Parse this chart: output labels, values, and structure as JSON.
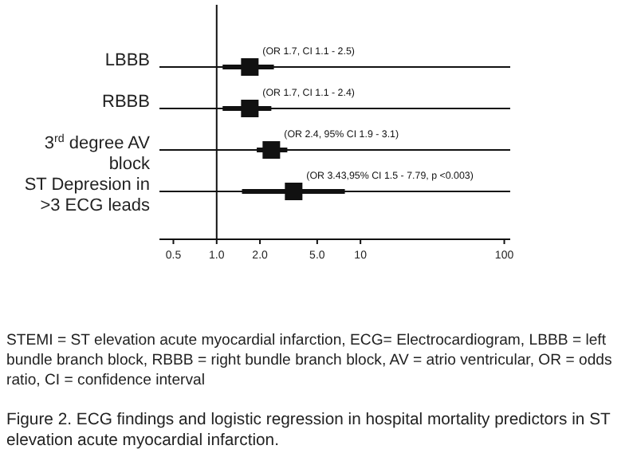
{
  "chart_data": {
    "type": "scatter",
    "orientation": "horizontal",
    "marker": "square",
    "grid": "y",
    "categories": [
      "LBBB",
      "RBBB",
      "3$^{rd}$ degree AV block",
      "ST Depresion in >3 ECG leads"
    ],
    "values": [
      1.7,
      1.7,
      2.4,
      3.43
    ],
    "errors": [
      [
        1.1,
        2.5
      ],
      [
        1.1,
        2.4
      ],
      [
        1.9,
        3.1
      ],
      [
        1.5,
        7.79
      ]
    ],
    "value_labels": [
      "(OR 1.7, CI 1.1 - 2.5)",
      "(OR 1.7, CI 1.1 - 2.4)",
      "(OR 2.4, 95% CI 1.9 - 3.1)",
      "(OR 3.43,95% CI 1.5 - 7.79, p <0.003)"
    ],
    "color": "#111111",
    "log": "x",
    "xlim": [
      0.4,
      110
    ],
    "xticks": [
      0.5,
      {
        "value": 1,
        "label": "1.0"
      },
      {
        "value": 2,
        "label": "2.0"
      },
      {
        "value": 5,
        "label": "5.0"
      },
      10,
      100
    ],
    "ref_lines": [
      {
        "axis": "x",
        "value": 1,
        "label": null
      }
    ],
    "annotations": [
      "STEMI = ST elevation acute myocardial infarction, ECG= Electrocardiogram, LBBB = left bundle branch block, RBBB = right bundle branch block, AV = atrio ventricular, OR = odds ratio, CI = confidence interval",
      "Figure 2. ECG findings and logistic regression in hospital mortality predictors in ST elevation acute myocardial infarction."
    ]
  }
}
